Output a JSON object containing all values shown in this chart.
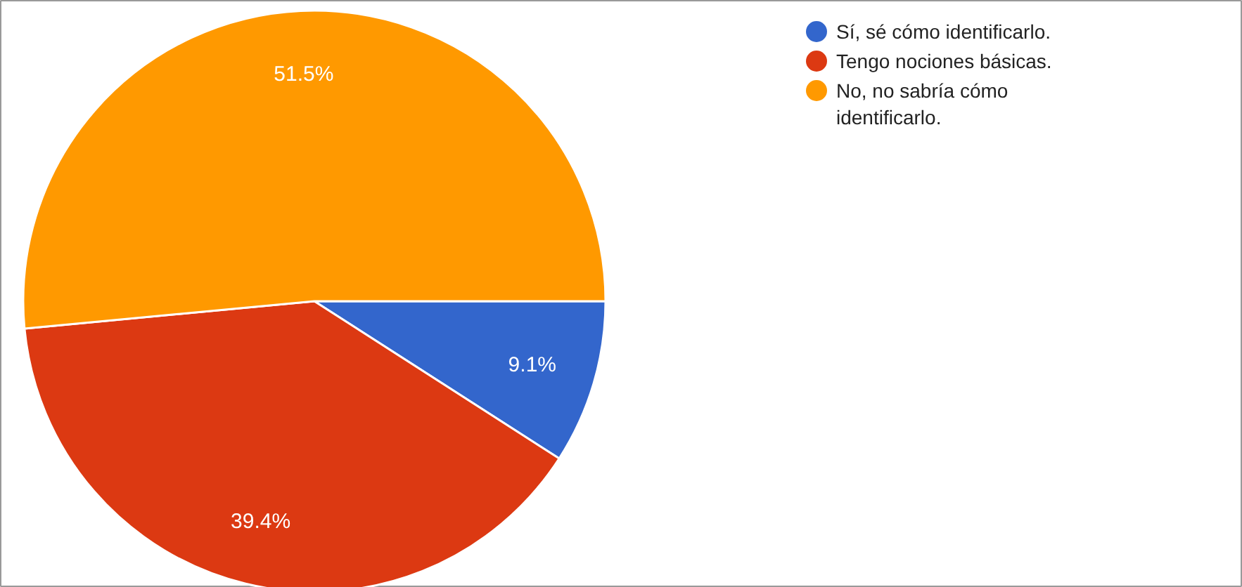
{
  "chart_data": {
    "type": "pie",
    "categories": [
      "Sí, sé cómo identificarlo.",
      "Tengo nociones básicas.",
      "No, no sabría cómo identificarlo."
    ],
    "values": [
      9.1,
      39.4,
      51.5
    ],
    "colors": [
      "#3366cc",
      "#dc3912",
      "#ff9900"
    ],
    "value_labels": [
      "9.1%",
      "39.4%",
      "51.5%"
    ],
    "legend": "top right"
  }
}
